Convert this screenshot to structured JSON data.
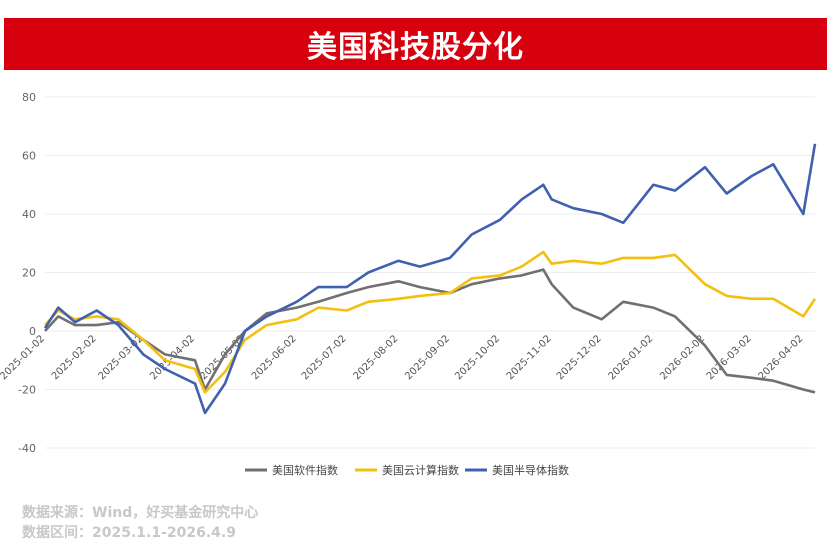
{
  "title": "美国科技股分化",
  "source_lines": [
    "数据来源：Wind，好买基金研究中心",
    "数据区间：2025.1.1-2026.4.9"
  ],
  "chart_data": {
    "type": "line",
    "xlabel": "",
    "ylabel": "",
    "ylim": [
      -40,
      80
    ],
    "yticks": [
      -40,
      -20,
      0,
      20,
      40,
      60,
      80
    ],
    "xticks": [
      "2025-01-02",
      "2025-02-02",
      "2025-03-02",
      "2025-04-02",
      "2025-05-02",
      "2025-06-02",
      "2025-07-02",
      "2025-08-02",
      "2025-09-02",
      "2025-10-02",
      "2025-11-02",
      "2025-12-02",
      "2026-01-02",
      "2026-02-02",
      "2026-03-02",
      "2026-04-02"
    ],
    "grid": "horizontal",
    "legend_position": "bottom",
    "x": [
      "2025-01-02",
      "2025-01-10",
      "2025-01-20",
      "2025-02-02",
      "2025-02-15",
      "2025-03-02",
      "2025-03-15",
      "2025-04-02",
      "2025-04-08",
      "2025-04-20",
      "2025-05-02",
      "2025-05-15",
      "2025-06-02",
      "2025-06-15",
      "2025-07-02",
      "2025-07-15",
      "2025-08-02",
      "2025-08-15",
      "2025-09-02",
      "2025-09-15",
      "2025-10-02",
      "2025-10-15",
      "2025-10-28",
      "2025-11-02",
      "2025-11-15",
      "2025-12-02",
      "2025-12-15",
      "2026-01-02",
      "2026-01-15",
      "2026-02-02",
      "2026-02-15",
      "2026-03-02",
      "2026-03-15",
      "2026-04-02",
      "2026-04-09"
    ],
    "series": [
      {
        "name": "美国软件指数",
        "color": "#707070",
        "values": [
          0,
          5,
          2,
          2,
          3,
          -3,
          -8,
          -10,
          -20,
          -8,
          0,
          6,
          8,
          10,
          13,
          15,
          17,
          15,
          13,
          16,
          18,
          19,
          21,
          16,
          8,
          4,
          10,
          8,
          5,
          -5,
          -15,
          -16,
          -17,
          -20,
          -21
        ]
      },
      {
        "name": "美国云计算指数",
        "color": "#f2c010",
        "values": [
          2,
          7,
          4,
          5,
          4,
          -3,
          -10,
          -13,
          -21,
          -14,
          -3,
          2,
          4,
          8,
          7,
          10,
          11,
          12,
          13,
          18,
          19,
          22,
          27,
          23,
          24,
          23,
          25,
          25,
          26,
          16,
          12,
          11,
          11,
          5,
          11
        ]
      },
      {
        "name": "美国半导体指数",
        "color": "#4060b0",
        "values": [
          1,
          8,
          3,
          7,
          2,
          -8,
          -13,
          -18,
          -28,
          -18,
          0,
          5,
          10,
          15,
          15,
          20,
          24,
          22,
          25,
          33,
          38,
          45,
          50,
          45,
          42,
          40,
          37,
          50,
          48,
          56,
          47,
          53,
          57,
          40,
          64
        ]
      }
    ]
  }
}
